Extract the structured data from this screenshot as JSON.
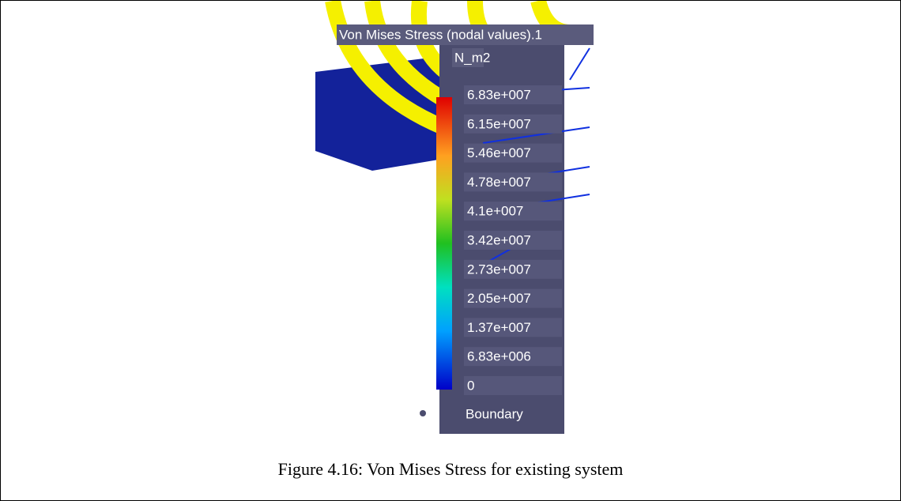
{
  "figure": {
    "legend_title": "Von Mises Stress (nodal values).1",
    "unit": "N_m2",
    "scale_labels": [
      "6.83e+007",
      "6.15e+007",
      "5.46e+007",
      "4.78e+007",
      "4.1e+007",
      "3.42e+007",
      "2.73e+007",
      "2.05e+007",
      "1.37e+007",
      "6.83e+006",
      "0"
    ],
    "boundary_label": "Boundary",
    "caption": "Figure 4.16: Von Mises Stress for existing system"
  }
}
